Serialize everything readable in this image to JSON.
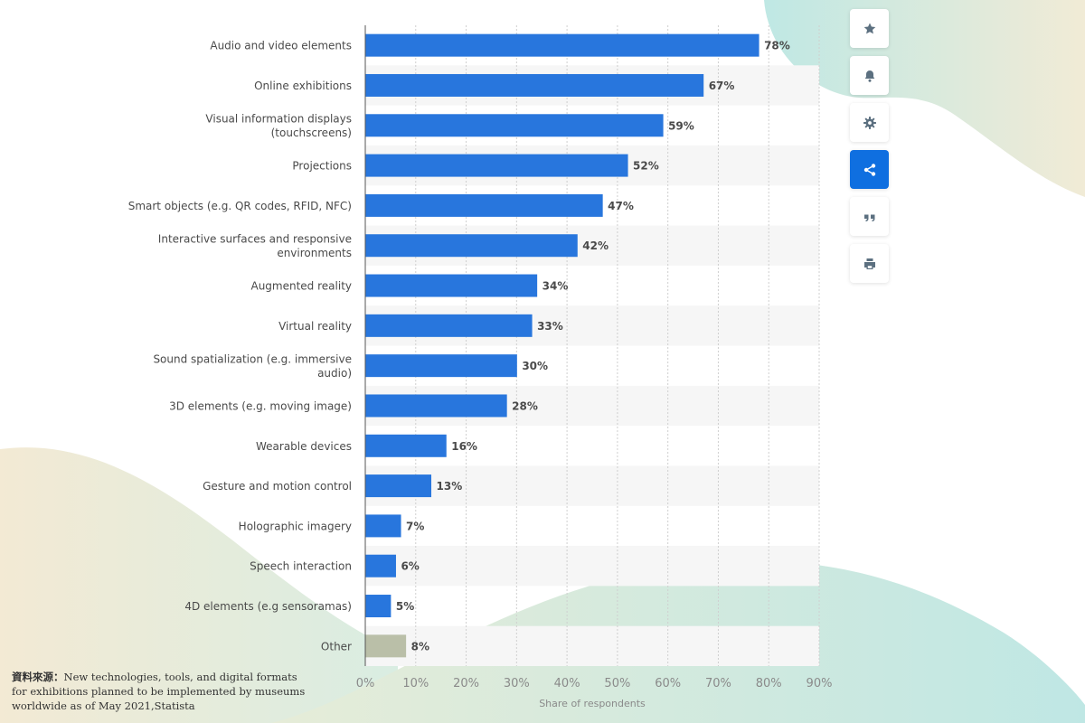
{
  "chart_data": {
    "type": "bar",
    "orientation": "horizontal",
    "categories": [
      "Audio and video elements",
      "Online exhibitions",
      "Visual information displays (touchscreens)",
      "Projections",
      "Smart objects (e.g. QR codes, RFID, NFC)",
      "Interactive surfaces and responsive environments",
      "Augmented reality",
      "Virtual reality",
      "Sound spatialization (e.g. immersive audio)",
      "3D elements (e.g. moving image)",
      "Wearable devices",
      "Gesture and motion control",
      "Holographic imagery",
      "Speech interaction",
      "4D elements (e.g sensoramas)",
      "Other"
    ],
    "category_lines": [
      [
        "Audio and video elements"
      ],
      [
        "Online exhibitions"
      ],
      [
        "Visual information displays",
        "(touchscreens)"
      ],
      [
        "Projections"
      ],
      [
        "Smart objects (e.g. QR codes, RFID, NFC)"
      ],
      [
        "Interactive surfaces and responsive",
        "environments"
      ],
      [
        "Augmented reality"
      ],
      [
        "Virtual reality"
      ],
      [
        "Sound spatialization (e.g. immersive",
        "audio)"
      ],
      [
        "3D elements (e.g. moving image)"
      ],
      [
        "Wearable devices"
      ],
      [
        "Gesture and motion control"
      ],
      [
        "Holographic imagery"
      ],
      [
        "Speech interaction"
      ],
      [
        "4D elements (e.g sensoramas)"
      ],
      [
        "Other"
      ]
    ],
    "values": [
      78,
      67,
      59,
      52,
      47,
      42,
      34,
      33,
      30,
      28,
      16,
      13,
      7,
      6,
      5,
      8
    ],
    "value_labels": [
      "78%",
      "67%",
      "59%",
      "52%",
      "47%",
      "42%",
      "34%",
      "33%",
      "30%",
      "28%",
      "16%",
      "13%",
      "7%",
      "6%",
      "5%",
      "8%"
    ],
    "xlabel": "Share of respondents",
    "xlim": [
      0,
      90
    ],
    "xticks": [
      0,
      10,
      20,
      30,
      40,
      50,
      60,
      70,
      80,
      90
    ],
    "xtick_labels": [
      "0%",
      "10%",
      "20%",
      "30%",
      "40%",
      "50%",
      "60%",
      "70%",
      "80%",
      "90%"
    ],
    "grid": true,
    "legend": "none",
    "colors": {
      "bar": "#2876dd",
      "highlight": "#babfa8",
      "highlight_category": "Other"
    }
  },
  "toolbar": [
    {
      "name": "favorite-button",
      "icon": "star-icon",
      "active": false
    },
    {
      "name": "notification-button",
      "icon": "bell-icon",
      "active": false
    },
    {
      "name": "settings-button",
      "icon": "gear-icon",
      "active": false
    },
    {
      "name": "share-button",
      "icon": "share-icon",
      "active": true
    },
    {
      "name": "cite-button",
      "icon": "quote-icon",
      "active": false
    },
    {
      "name": "print-button",
      "icon": "print-icon",
      "active": false
    }
  ],
  "source": {
    "label": "資料來源：",
    "text": "New technologies, tools, and digital formats for exhibitions planned to be implemented by museums worldwide as of May 2021,Statista"
  },
  "colors": {
    "accent": "#0f6fe0",
    "icon": "#5c7080"
  }
}
